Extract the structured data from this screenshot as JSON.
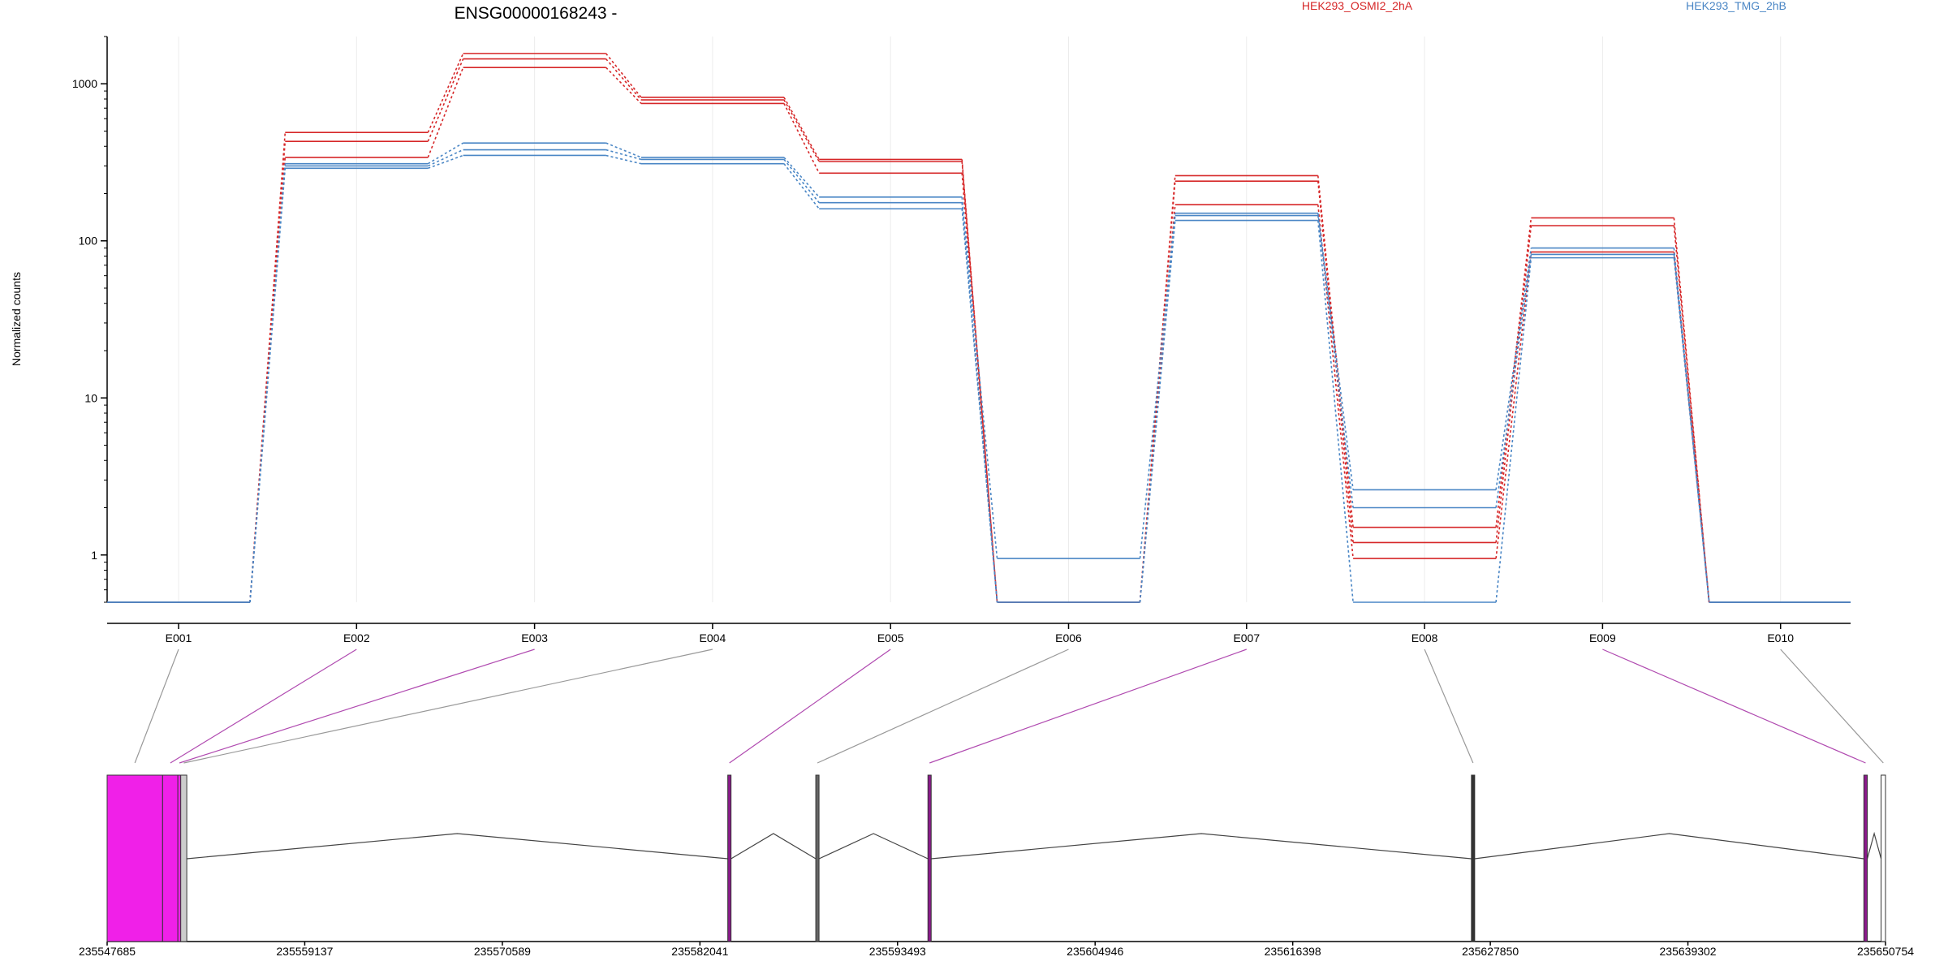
{
  "chart_data": {
    "type": "line",
    "title": "ENSG00000168243 -",
    "ylabel": "Normalized counts",
    "xlabel": "",
    "yscale": "log",
    "ylim": [
      0.5,
      2000
    ],
    "yticks": [
      1,
      10,
      100,
      1000
    ],
    "ytick_labels": [
      "1",
      "10",
      "100",
      "1000"
    ],
    "grid": "vertical-light",
    "legend_position": "top-right",
    "legend": [
      {
        "name": "HEK293_OSMI2_2hA",
        "color": "#d62728"
      },
      {
        "name": "HEK293_TMG_2hB",
        "color": "#4a86c5"
      }
    ],
    "categories": [
      "E001",
      "E002",
      "E003",
      "E004",
      "E005",
      "E006",
      "E007",
      "E008",
      "E009",
      "E010"
    ],
    "series": [
      {
        "group": "HEK293_OSMI2_2hA",
        "color": "#d62728",
        "values": [
          0.5,
          490,
          1560,
          820,
          330,
          0.5,
          260,
          1.5,
          140,
          0.5
        ]
      },
      {
        "group": "HEK293_OSMI2_2hA",
        "color": "#d62728",
        "values": [
          0.5,
          430,
          1440,
          790,
          320,
          0.5,
          240,
          1.2,
          125,
          0.5
        ]
      },
      {
        "group": "HEK293_OSMI2_2hA",
        "color": "#d62728",
        "values": [
          0.5,
          340,
          1270,
          750,
          270,
          0.5,
          170,
          0.95,
          85,
          0.5
        ]
      },
      {
        "group": "HEK293_TMG_2hB",
        "color": "#4a86c5",
        "values": [
          0.5,
          310,
          420,
          340,
          190,
          0.95,
          150,
          2.6,
          90,
          0.5
        ]
      },
      {
        "group": "HEK293_TMG_2hB",
        "color": "#4a86c5",
        "values": [
          0.5,
          300,
          380,
          330,
          175,
          0.5,
          145,
          2.0,
          82,
          0.5
        ]
      },
      {
        "group": "HEK293_TMG_2hB",
        "color": "#4a86c5",
        "values": [
          0.5,
          290,
          350,
          310,
          160,
          0.5,
          135,
          0.5,
          78,
          0.5
        ]
      }
    ],
    "gene_model": {
      "xlim": [
        235547685,
        235650754
      ],
      "xtick_labels": [
        "235547685",
        "235559137",
        "235570589",
        "235582041",
        "235593493",
        "235604946",
        "235616398",
        "235627850",
        "235639302",
        "235650754"
      ],
      "exons": [
        {
          "label": "E001",
          "start": 235547685,
          "end": 235550900,
          "color": "#f020e8",
          "significant": false
        },
        {
          "label": "E002",
          "start": 235550900,
          "end": 235551800,
          "color": "#f020e8",
          "significant": true
        },
        {
          "label": "E003",
          "start": 235551800,
          "end": 235551950,
          "color": "#f020e8",
          "significant": true
        },
        {
          "label": "E004",
          "start": 235551950,
          "end": 235552300,
          "color": "#cccccc",
          "significant": false
        },
        {
          "label": "E005",
          "start": 235583700,
          "end": 235583800,
          "color": "#8b1a8b",
          "significant": true
        },
        {
          "label": "E006",
          "start": 235588800,
          "end": 235588900,
          "color": "#666666",
          "significant": false
        },
        {
          "label": "E007",
          "start": 235595300,
          "end": 235595400,
          "color": "#8b1a8b",
          "significant": true
        },
        {
          "label": "E008",
          "start": 235626800,
          "end": 235626900,
          "color": "#333333",
          "significant": false
        },
        {
          "label": "E009",
          "start": 235649500,
          "end": 235649700,
          "color": "#8b1a8b",
          "significant": true
        },
        {
          "label": "E010",
          "start": 235650500,
          "end": 235650754,
          "color": "#ffffff",
          "significant": false
        }
      ]
    }
  }
}
